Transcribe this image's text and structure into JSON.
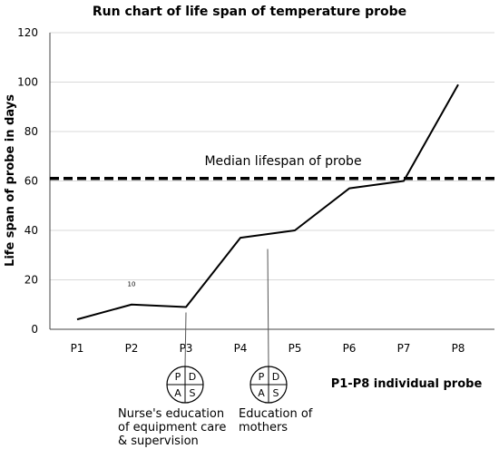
{
  "chart_data": {
    "type": "line",
    "title": "Run chart of life span of temperature probe",
    "ylabel": "Life span of probe in days",
    "xlabel": "",
    "categories": [
      "P1",
      "P2",
      "P3",
      "P4",
      "P5",
      "P6",
      "P7",
      "P8"
    ],
    "series": [
      {
        "values": [
          4,
          10,
          9,
          37,
          40,
          57,
          60,
          99
        ]
      }
    ],
    "ylim": [
      0,
      120
    ],
    "yticks": [
      0,
      20,
      40,
      60,
      80,
      100,
      120
    ],
    "grid": true,
    "median": {
      "value": 61,
      "label": "Median lifespan of probe"
    },
    "data_labels": [
      {
        "category": "P2",
        "text": "10"
      }
    ],
    "annotations": [
      {
        "after_category": "P3",
        "pdsa": [
          "P",
          "D",
          "A",
          "S"
        ],
        "text_lines": [
          "Nurse's education",
          "of equipment care",
          "& supervision"
        ]
      },
      {
        "after_category": "P4",
        "pdsa": [
          "P",
          "D",
          "A",
          "S"
        ],
        "text_lines": [
          "Education of",
          "mothers"
        ]
      }
    ],
    "caption": "P1-P8 individual probe",
    "colors": {
      "line": "#000000",
      "grid": "#d9d9d9",
      "median": "#000000"
    }
  }
}
